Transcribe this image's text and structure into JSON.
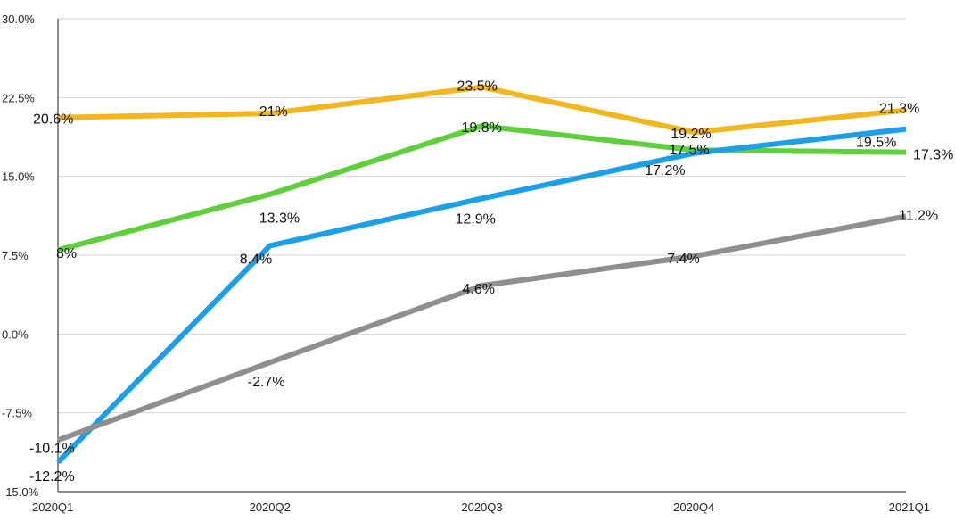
{
  "chart_data": {
    "type": "line",
    "title": "",
    "xlabel": "",
    "ylabel": "",
    "categories": [
      "2020Q1",
      "2020Q2",
      "2020Q3",
      "2020Q4",
      "2021Q1"
    ],
    "ylim": [
      -15,
      30
    ],
    "yticks": [
      -15,
      -7.5,
      0,
      7.5,
      15,
      22.5,
      30
    ],
    "ytick_labels": [
      "-15.0%",
      "-7.5%",
      "0.0%",
      "7.5%",
      "15.0%",
      "22.5%",
      "30.0%"
    ],
    "grid": true,
    "legend": "none",
    "series": [
      {
        "color": "#f2b71f",
        "values": [
          20.6,
          21,
          23.5,
          19.2,
          21.3
        ],
        "labels": [
          "20.6%",
          "21%",
          "23.5%",
          "19.2%",
          "21.3%"
        ]
      },
      {
        "color": "#5dd03c",
        "values": [
          8,
          13.3,
          19.8,
          17.5,
          17.3
        ],
        "labels": [
          "8%",
          "13.3%",
          "19.8%",
          "17.5%",
          "17.3%"
        ]
      },
      {
        "color": "#1a9fe8",
        "values": [
          -12.2,
          8.4,
          12.9,
          17.2,
          19.5
        ],
        "labels": [
          "-12.2%",
          "8.4%",
          "12.9%",
          "17.2%",
          "19.5%"
        ]
      },
      {
        "color": "#8f8f8f",
        "values": [
          -10.1,
          -2.7,
          4.6,
          7.4,
          11.2
        ],
        "labels": [
          "-10.1%",
          "-2.7%",
          "4.6%",
          "7.4%",
          "11.2%"
        ]
      }
    ]
  }
}
